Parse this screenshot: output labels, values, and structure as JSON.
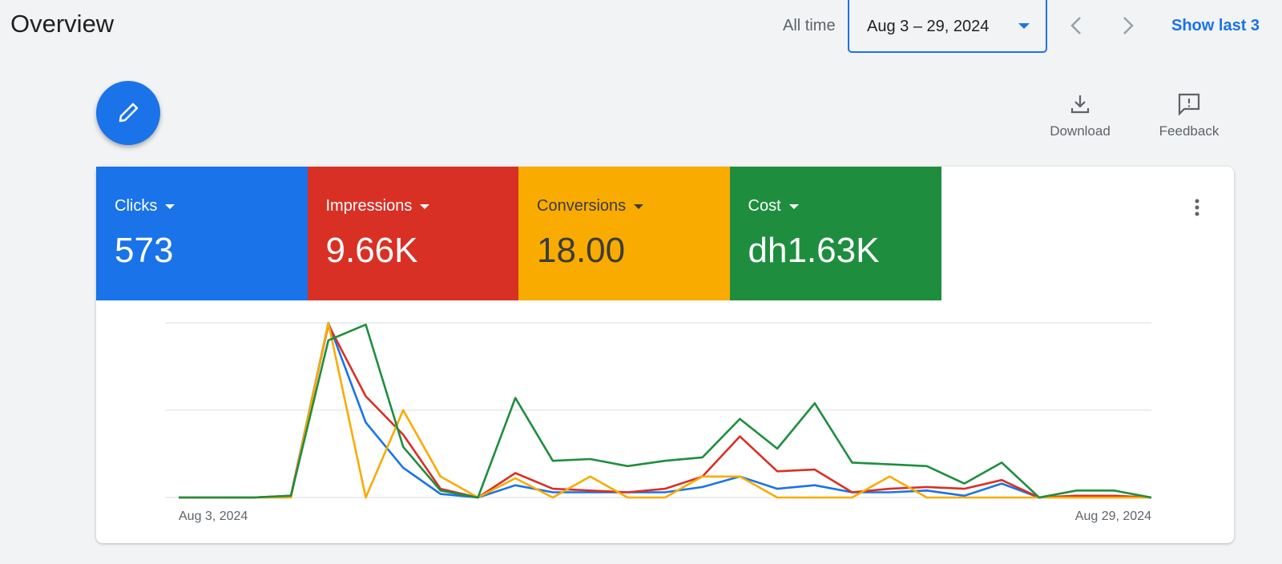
{
  "header": {
    "title": "Overview",
    "range_label": "All time",
    "date_range": "Aug 3 – 29, 2024",
    "show_last": "Show last 3"
  },
  "toolbar": {
    "download": "Download",
    "feedback": "Feedback"
  },
  "chart_data": {
    "type": "line",
    "categories": [
      "Aug 3, 2024",
      null,
      null,
      null,
      null,
      null,
      null,
      null,
      null,
      null,
      null,
      null,
      null,
      null,
      null,
      null,
      null,
      null,
      null,
      null,
      null,
      null,
      null,
      null,
      null,
      null,
      "Aug 29, 2024"
    ],
    "ylim": [
      0,
      100
    ],
    "grid": [
      0,
      50,
      100
    ],
    "series": [
      {
        "name": "Clicks",
        "summary": "573",
        "color": "#1a73e8",
        "values": [
          0,
          0,
          0,
          1,
          100,
          43,
          17,
          2,
          0,
          7,
          3,
          3,
          3,
          3,
          6,
          12,
          5,
          7,
          3,
          3,
          4,
          1,
          8,
          0,
          1,
          1,
          0
        ]
      },
      {
        "name": "Impressions",
        "summary": "9.66K",
        "color": "#d93025",
        "values": [
          0,
          0,
          0,
          1,
          99,
          58,
          36,
          5,
          0,
          14,
          5,
          4,
          3,
          5,
          12,
          35,
          15,
          16,
          3,
          5,
          6,
          5,
          10,
          0,
          1,
          1,
          0
        ]
      },
      {
        "name": "Conversions",
        "summary": "18.00",
        "color": "#f9ab00",
        "values": [
          0,
          0,
          0,
          0,
          100,
          0,
          50,
          12,
          0,
          11,
          0,
          12,
          0,
          0,
          12,
          12,
          0,
          0,
          0,
          12,
          0,
          0,
          0,
          0,
          0,
          0,
          0
        ]
      },
      {
        "name": "Cost",
        "summary": "dh1.63K",
        "color": "#1e8e3e",
        "values": [
          0,
          0,
          0,
          1,
          90,
          99,
          29,
          4,
          0,
          57,
          21,
          22,
          18,
          21,
          23,
          45,
          28,
          54,
          20,
          19,
          18,
          8,
          20,
          0,
          4,
          4,
          0
        ]
      }
    ]
  }
}
